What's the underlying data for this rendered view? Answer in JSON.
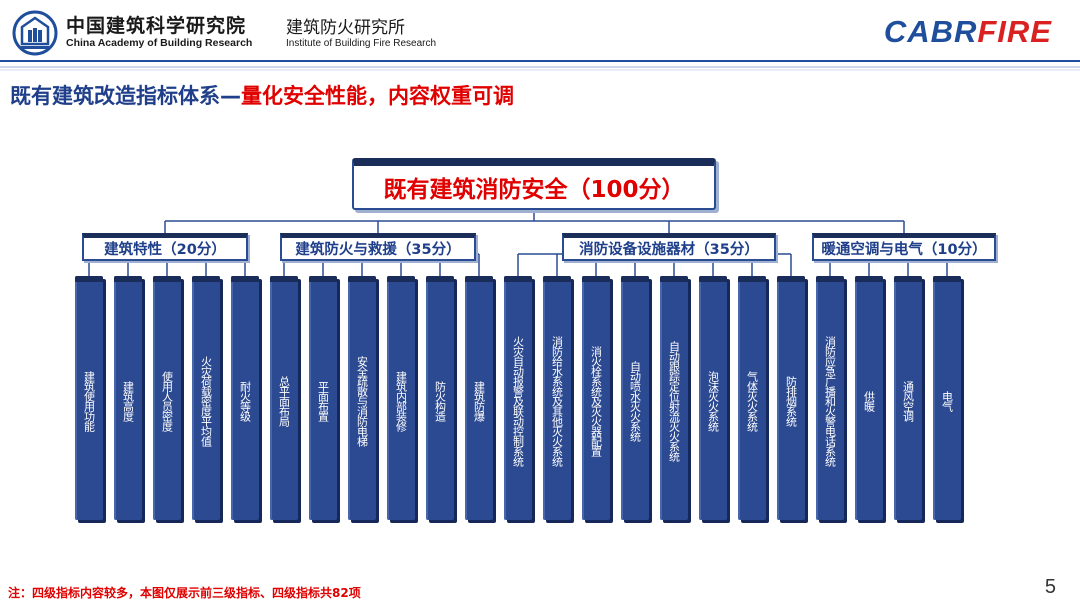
{
  "header": {
    "org_cn": "中国建筑科学研究院",
    "org_en": "China Academy of Building Research",
    "inst_cn": "建筑防火研究所",
    "inst_en": "Institute of Building Fire Research",
    "brand_part1": "CABR",
    "brand_part2": "FIRE",
    "logo_icon": "cabr-emblem-icon"
  },
  "title": {
    "part1": "既有建筑改造指标体系—",
    "part2": "量化安全性能，内容权重可调"
  },
  "tree": {
    "root": "既有建筑消防安全（100分）",
    "groups": [
      {
        "label": "建筑特性（20分）",
        "items": [
          "建筑使用功能",
          "建筑高度",
          "使用人员密度",
          "火灾荷载密度平均值",
          "耐火等级"
        ]
      },
      {
        "label": "建筑防火与救援（35分）",
        "items": [
          "总平面布局",
          "平面布置",
          "安全疏散与消防电梯",
          "建筑内部装修",
          "防火构造",
          "建筑防爆"
        ]
      },
      {
        "label": "消防设备设施器材（35分）",
        "items": [
          "火灾自动报警及联动控制系统",
          "消防给水系统及其他灭火系统",
          "消火栓系统及灭火器配置",
          "自动喷水灭火系统",
          "自动跟踪定位射流灭火系统",
          "泡沫灭火系统",
          "气体灭火系统",
          "防排烟系统"
        ]
      },
      {
        "label": "暖通空调与电气（10分）",
        "items": [
          "消防应急广播和火警电话系统",
          "供暖",
          "通风空调",
          "电气"
        ]
      }
    ]
  },
  "footnote": "注：四级指标内容较多，本图仅展示前三级指标、四级指标共82项",
  "page_number": "5",
  "colors": {
    "navy": "#1f3f8a",
    "box_dark": "#2c4a92",
    "accent_red": "#e00000",
    "brand_blue": "#1f4e9c"
  }
}
